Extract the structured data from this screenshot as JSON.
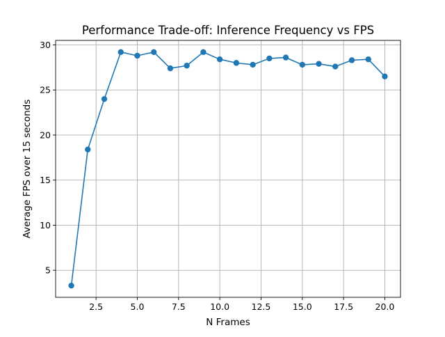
{
  "chart_data": {
    "type": "line",
    "title": "Performance Trade-off: Inference Frequency vs FPS",
    "xlabel": "N Frames",
    "ylabel": "Average FPS over 15 seconds",
    "xlim": [
      0.05,
      20.95
    ],
    "ylim": [
      2.0,
      30.5
    ],
    "xticks": [
      2.5,
      5.0,
      7.5,
      10.0,
      12.5,
      15.0,
      17.5,
      20.0
    ],
    "xtick_labels": [
      "2.5",
      "5.0",
      "7.5",
      "10.0",
      "12.5",
      "15.0",
      "17.5",
      "20.0"
    ],
    "yticks": [
      5,
      10,
      15,
      20,
      25,
      30
    ],
    "ytick_labels": [
      "5",
      "10",
      "15",
      "20",
      "25",
      "30"
    ],
    "grid": true,
    "series": [
      {
        "color": "#1f77b4",
        "marker": "circle",
        "x": [
          1,
          2,
          3,
          4,
          5,
          6,
          7,
          8,
          9,
          10,
          11,
          12,
          13,
          14,
          15,
          16,
          17,
          18,
          19,
          20
        ],
        "y": [
          3.3,
          18.4,
          24.0,
          29.2,
          28.8,
          29.2,
          27.4,
          27.7,
          29.2,
          28.4,
          28.0,
          27.8,
          28.5,
          28.6,
          27.8,
          27.9,
          27.6,
          28.3,
          28.4,
          26.5
        ]
      }
    ]
  }
}
